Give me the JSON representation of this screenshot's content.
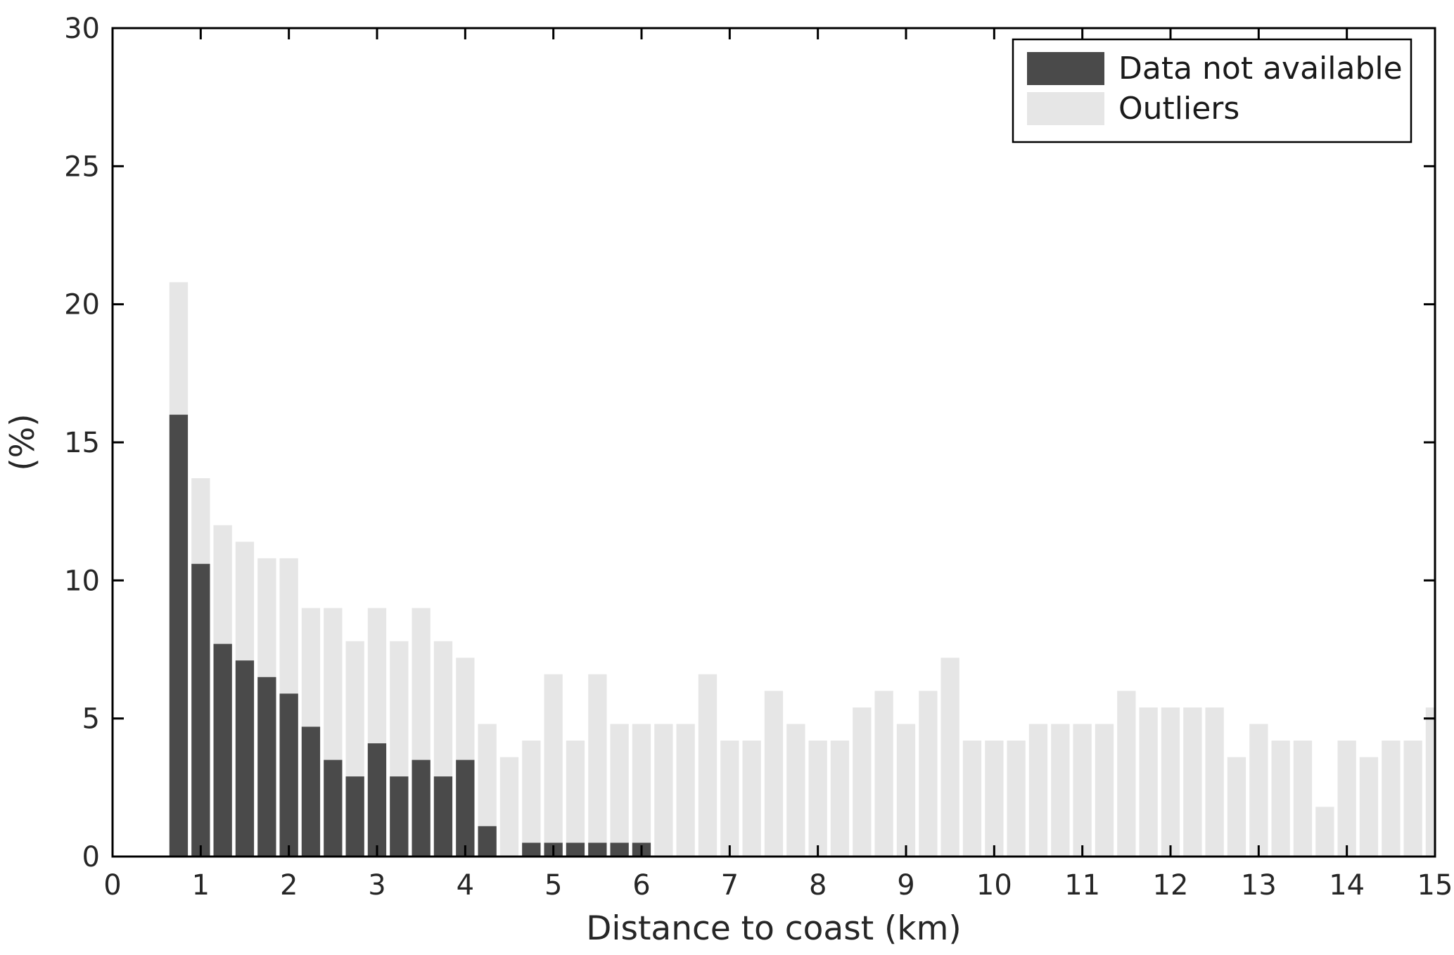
{
  "chart_data": {
    "type": "bar",
    "title": "",
    "xlabel": "Distance to coast (km)",
    "ylabel": "(%)",
    "xlim": [
      0,
      15
    ],
    "ylim": [
      0,
      30
    ],
    "x_ticks": [
      0,
      1,
      2,
      3,
      4,
      5,
      6,
      7,
      8,
      9,
      10,
      11,
      12,
      13,
      14,
      15
    ],
    "y_ticks": [
      0,
      5,
      10,
      15,
      20,
      25,
      30
    ],
    "bin_width_km": 0.25,
    "bar_style": "overlaid",
    "grid": false,
    "legend": {
      "position": "top-right",
      "entries": [
        {
          "label": "Data not available"
        },
        {
          "label": "Outliers"
        }
      ]
    },
    "x": [
      0.75,
      1.0,
      1.25,
      1.5,
      1.75,
      2.0,
      2.25,
      2.5,
      2.75,
      3.0,
      3.25,
      3.5,
      3.75,
      4.0,
      4.25,
      4.5,
      4.75,
      5.0,
      5.25,
      5.5,
      5.75,
      6.0,
      6.25,
      6.5,
      6.75,
      7.0,
      7.25,
      7.5,
      7.75,
      8.0,
      8.25,
      8.5,
      8.75,
      9.0,
      9.25,
      9.5,
      9.75,
      10.0,
      10.25,
      10.5,
      10.75,
      11.0,
      11.25,
      11.5,
      11.75,
      12.0,
      12.25,
      12.5,
      12.75,
      13.0,
      13.25,
      13.5,
      13.75,
      14.0,
      14.25,
      14.5,
      14.75,
      15.0
    ],
    "series": [
      {
        "name": "Data not available",
        "color": "#4a4a4a",
        "values": [
          16.0,
          10.6,
          7.7,
          7.1,
          6.5,
          5.9,
          4.7,
          3.5,
          2.9,
          4.1,
          2.9,
          3.5,
          2.9,
          3.5,
          1.1,
          0,
          0.5,
          0.5,
          0.5,
          0.5,
          0.5,
          0.5,
          0,
          0,
          0,
          0,
          0,
          0,
          0,
          0,
          0,
          0,
          0,
          0,
          0,
          0,
          0,
          0,
          0,
          0,
          0,
          0,
          0,
          0,
          0,
          0,
          0,
          0,
          0,
          0,
          0,
          0,
          0,
          0,
          0,
          0,
          0,
          0
        ]
      },
      {
        "name": "Outliers",
        "color": "#e6e6e6",
        "values": [
          20.8,
          13.7,
          12.0,
          11.4,
          10.8,
          10.8,
          9.0,
          9.0,
          7.8,
          9.0,
          7.8,
          9.0,
          7.8,
          7.2,
          4.8,
          3.6,
          4.2,
          6.6,
          4.2,
          6.6,
          4.8,
          4.8,
          4.8,
          4.8,
          6.6,
          4.2,
          4.2,
          6.0,
          4.8,
          4.2,
          4.2,
          5.4,
          6.0,
          4.8,
          6.0,
          7.2,
          4.2,
          4.2,
          4.2,
          4.8,
          4.8,
          4.8,
          4.8,
          6.0,
          5.4,
          5.4,
          5.4,
          5.4,
          3.6,
          4.8,
          4.2,
          4.2,
          1.8,
          4.2,
          3.6,
          4.2,
          4.2,
          5.4
        ]
      }
    ],
    "axis_color": "#000000",
    "background_color": "#ffffff"
  }
}
